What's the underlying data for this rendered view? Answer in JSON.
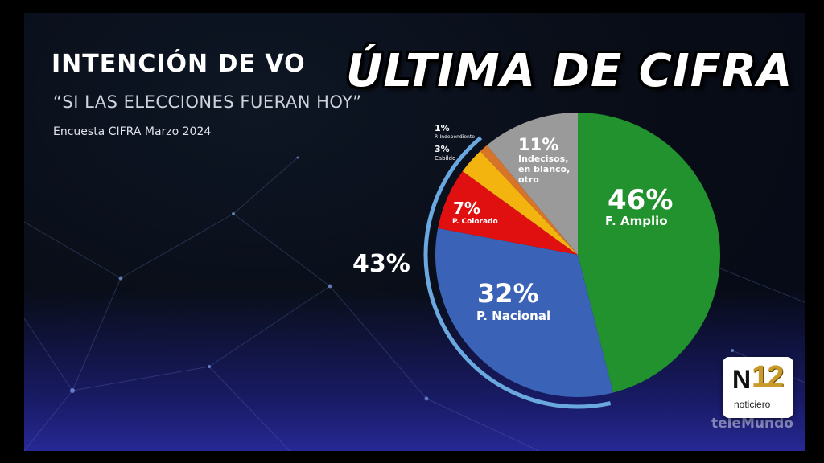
{
  "header": {
    "title": "INTENCIÓN DE VO",
    "subtitle": "“SI LAS ELECCIONES FUERAN HOY”",
    "source": "Encuesta CIFRA Marzo 2024"
  },
  "headline": "ÚLTIMA DE CIFRA",
  "colors": {
    "frente_amplio": "#22922e",
    "partido_nacional": "#3a63b8",
    "partido_colorado": "#e01010",
    "cabildo": "#f3b40f",
    "independiente": "#d8742a",
    "indecisos": "#9a9a9a",
    "coalition_arc": "#6aa9e0"
  },
  "chart_data": {
    "type": "pie",
    "slices": [
      {
        "key": "fa",
        "pct": "46%",
        "name": "F. Amplio",
        "value": 46,
        "color": "#22922e"
      },
      {
        "key": "pn",
        "pct": "32%",
        "name": "P. Nacional",
        "value": 32,
        "color": "#3a63b8"
      },
      {
        "key": "pc",
        "pct": "7%",
        "name": "P. Colorado",
        "value": 7,
        "color": "#e01010"
      },
      {
        "key": "ca",
        "pct": "3%",
        "name": "Cabildo",
        "value": 3,
        "color": "#f3b40f"
      },
      {
        "key": "pi",
        "pct": "1%",
        "name": "P. Independiente",
        "value": 1,
        "color": "#d8742a"
      },
      {
        "key": "ind",
        "pct": "11%",
        "name": "Indecisos, en blanco, otro",
        "name_lines": [
          "Indecisos,",
          "en blanco,",
          "otro"
        ],
        "value": 11,
        "color": "#9a9a9a"
      }
    ],
    "coalition": {
      "label": "43%",
      "value": 43,
      "members": [
        "pn",
        "pc",
        "ca",
        "pi"
      ]
    },
    "legend": "none"
  },
  "brand": {
    "logo_n": "N",
    "logo_12": "12",
    "logo_sub": "noticiero",
    "watermark": "teleMundo"
  }
}
